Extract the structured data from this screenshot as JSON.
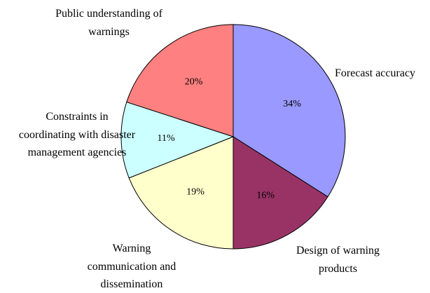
{
  "chart_data": {
    "type": "pie",
    "categories": [
      "Forecast accuracy",
      "Design of warning products",
      "Warning communication and dissemination",
      "Constraints in coordinating with disaster management agencies",
      "Public understanding of warnings"
    ],
    "values": [
      34,
      16,
      19,
      11,
      20
    ],
    "value_labels": [
      "34%",
      "16%",
      "19%",
      "11%",
      "20%"
    ],
    "colors": [
      "#9999ff",
      "#993366",
      "#ffffcc",
      "#ccffff",
      "#ff8080"
    ]
  }
}
